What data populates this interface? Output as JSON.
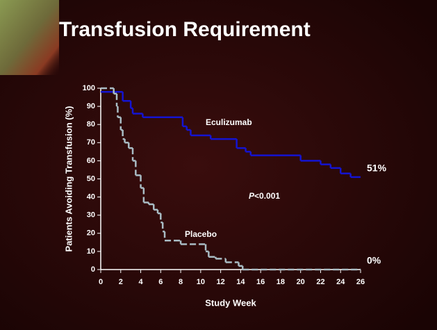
{
  "chart_data": {
    "type": "step",
    "title": "Transfusion Requirement",
    "x_label": "Study Week",
    "y_label": "Patients Avoiding Transfusion (%)",
    "xlim": [
      0,
      26
    ],
    "ylim": [
      0,
      100
    ],
    "xticks": [
      0,
      2,
      4,
      6,
      8,
      10,
      12,
      14,
      16,
      18,
      20,
      22,
      24,
      26
    ],
    "yticks": [
      0,
      10,
      20,
      30,
      40,
      50,
      60,
      70,
      80,
      90,
      100
    ],
    "p_value": {
      "italic": "P",
      "text": "<0.001"
    },
    "series": [
      {
        "name": "Eculizumab",
        "color": "#1414d2",
        "dashed": false,
        "end_label": "51%",
        "x": [
          0,
          2.2,
          3,
          3.2,
          4.2,
          8.2,
          8.6,
          9,
          11,
          13.6,
          14.5,
          15,
          20,
          22,
          23,
          24,
          25,
          26
        ],
        "values": [
          98,
          93,
          89,
          86,
          84,
          79,
          77,
          74,
          72,
          67,
          65,
          63,
          60,
          58,
          56,
          53,
          51,
          51
        ]
      },
      {
        "name": "Placebo",
        "color": "#a9bcc4",
        "dashed": true,
        "end_label": "0%",
        "x": [
          0,
          1.3,
          1.6,
          1.7,
          2,
          2.2,
          2.4,
          2.8,
          3.2,
          3.5,
          4,
          4.3,
          4.8,
          5.3,
          5.7,
          6,
          6.2,
          6.4,
          8,
          10.5,
          10.8,
          11.5,
          12.5,
          13.8,
          14.2,
          26
        ],
        "values": [
          100,
          97,
          90,
          84,
          77,
          72,
          70,
          67,
          60,
          52,
          45,
          37,
          36,
          33,
          31,
          26,
          21,
          16,
          14,
          10,
          7,
          6,
          4,
          2,
          0,
          0
        ]
      }
    ]
  }
}
